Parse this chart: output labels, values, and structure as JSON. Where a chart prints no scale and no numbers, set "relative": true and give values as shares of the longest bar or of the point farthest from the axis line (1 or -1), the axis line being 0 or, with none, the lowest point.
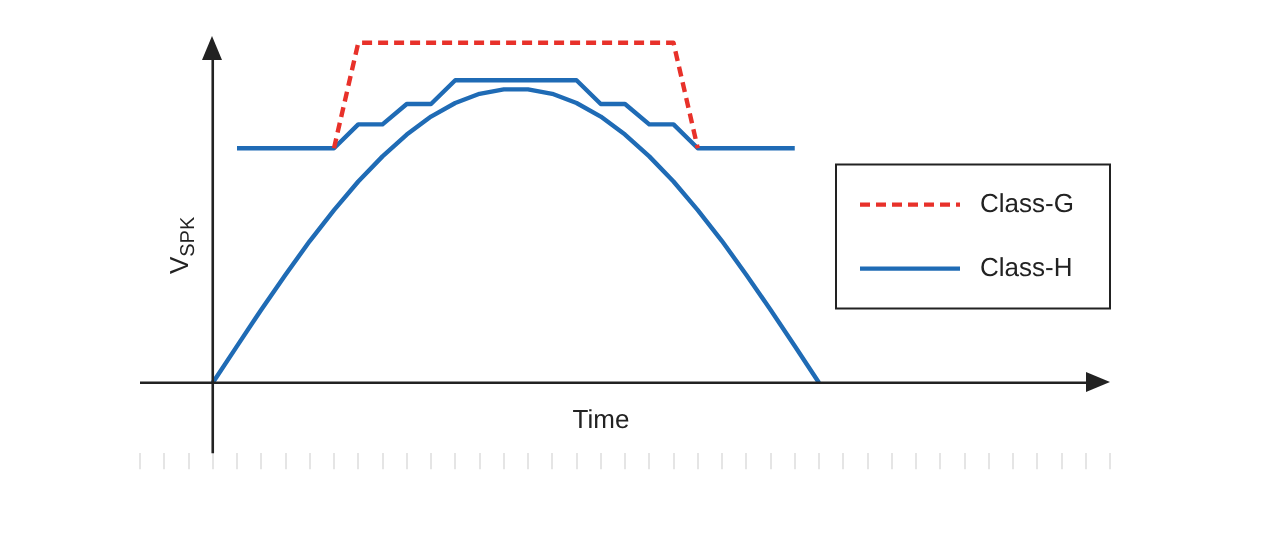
{
  "chart_data": {
    "type": "line",
    "relative": true,
    "xlabel": "Time",
    "ylabel": "V$_{SPK}$",
    "grid": false,
    "legend": "right",
    "marker": "none",
    "categories": [
      null,
      null,
      null,
      null,
      null,
      null,
      null,
      null,
      null,
      null,
      null,
      null,
      null,
      null,
      null,
      null,
      null,
      null,
      null,
      null,
      null,
      null,
      null,
      null,
      null,
      null,
      null,
      null,
      null,
      null,
      null,
      null,
      null,
      null,
      null,
      null,
      null,
      null,
      null,
      null,
      null
    ],
    "series": [
      {
        "name": "Class-G",
        "color": "#e8312a",
        "line_style": "dashed",
        "values": [
          null,
          null,
          null,
          null,
          null,
          null,
          null,
          null,
          0.69,
          1,
          1,
          1,
          1,
          1,
          1,
          1,
          1,
          1,
          1,
          1,
          1,
          1,
          1,
          0.69,
          null,
          null,
          null,
          null,
          null,
          null,
          null,
          null,
          null,
          null,
          null,
          null,
          null,
          null,
          null,
          null,
          null
        ]
      },
      {
        "name": "Class-H",
        "color": "#1f6bb5",
        "line_style": "solid",
        "values": [
          null,
          null,
          null,
          null,
          0.69,
          0.69,
          0.69,
          0.69,
          0.69,
          0.76,
          0.76,
          0.82,
          0.82,
          0.89,
          0.89,
          0.89,
          0.89,
          0.89,
          0.89,
          0.82,
          0.82,
          0.76,
          0.76,
          0.69,
          0.69,
          0.69,
          0.69,
          0.69,
          null,
          null,
          null,
          null,
          null,
          null,
          null,
          null,
          null,
          null,
          null,
          null,
          null
        ]
      },
      {
        "color": "#1f6bb5",
        "line_style": "solid",
        "values": [
          null,
          null,
          null,
          0,
          0.108,
          0.215,
          0.318,
          0.417,
          0.508,
          0.592,
          0.666,
          0.73,
          0.783,
          0.823,
          0.85,
          0.863,
          0.863,
          0.85,
          0.823,
          0.783,
          0.73,
          0.666,
          0.592,
          0.508,
          0.417,
          0.318,
          0.215,
          0.108,
          0,
          null,
          null,
          null,
          null,
          null,
          null,
          null,
          null,
          null,
          null,
          null,
          null
        ]
      }
    ]
  }
}
